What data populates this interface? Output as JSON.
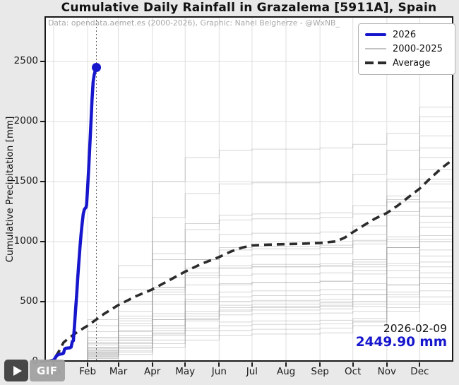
{
  "title": "Cumulative Daily Rainfall in Grazalema [5911A], Spain",
  "credit": "Data: opendata.aemet.es (2000-2026), Graphic: Nahel Belgherze - @WxNB_",
  "legend": {
    "items": [
      {
        "label": "2026",
        "style": "current"
      },
      {
        "label": "2000-2025",
        "style": "history"
      },
      {
        "label": "Average",
        "style": "average"
      }
    ]
  },
  "annotation": {
    "date": "2026-02-09",
    "value": "2449.90 mm"
  },
  "gif_badge": {
    "label": "GIF",
    "icon": "play-icon"
  },
  "colors": {
    "accent_blue": "#1616cd",
    "average_line": "#2b2b2b",
    "history_gray": "#999999",
    "grid": "#dedede",
    "figure_bg": "#e9e9e9",
    "plot_bg": "#ffffff",
    "spine": "#1a1a1a",
    "credit_gray": "#a8a8a8",
    "vline": "#444444"
  },
  "chart_data": {
    "type": "line",
    "title": "Cumulative Daily Rainfall in Grazalema [5911A], Spain",
    "xlabel": "",
    "ylabel": "Cumulative Precipitation [mm]",
    "ylim": [
      0,
      2880
    ],
    "grid": true,
    "legend_position": "upper right",
    "x_tick_labels": [
      "Jan",
      "Feb",
      "Mar",
      "Apr",
      "May",
      "Jun",
      "Jul",
      "Aug",
      "Sep",
      "Oct",
      "Nov",
      "Dec"
    ],
    "month_start_days": [
      0,
      31,
      59,
      90,
      120,
      151,
      181,
      212,
      243,
      273,
      304,
      334
    ],
    "y_ticks": [
      0,
      500,
      1000,
      1500,
      2000,
      2500
    ],
    "y_tick_labels": [
      "0",
      "500",
      "1000",
      "1500",
      "2000",
      "2500"
    ],
    "marker": {
      "day": 39,
      "value": 2449.9,
      "label_date": "2026-02-09",
      "label_value": "2449.90 mm"
    },
    "vline_day": 39,
    "current_year": {
      "name": "2026",
      "points": [
        [
          -8,
          0
        ],
        [
          -3,
          4
        ],
        [
          0,
          14
        ],
        [
          1,
          25
        ],
        [
          2,
          40
        ],
        [
          3,
          52
        ],
        [
          5,
          62
        ],
        [
          8,
          66
        ],
        [
          9,
          72
        ],
        [
          10,
          105
        ],
        [
          11,
          112
        ],
        [
          15,
          116
        ],
        [
          16,
          122
        ],
        [
          17,
          168
        ],
        [
          18,
          175
        ],
        [
          19,
          300
        ],
        [
          20,
          430
        ],
        [
          21,
          560
        ],
        [
          22,
          700
        ],
        [
          23,
          830
        ],
        [
          24,
          950
        ],
        [
          25,
          1060
        ],
        [
          26,
          1155
        ],
        [
          27,
          1230
        ],
        [
          28,
          1268
        ],
        [
          29.5,
          1285
        ],
        [
          30,
          1305
        ],
        [
          31,
          1450
        ],
        [
          32,
          1620
        ],
        [
          33,
          1800
        ],
        [
          34,
          1990
        ],
        [
          35,
          2180
        ],
        [
          36,
          2330
        ],
        [
          37,
          2390
        ],
        [
          38,
          2425
        ],
        [
          39,
          2449.9
        ]
      ]
    },
    "average": {
      "name": "Average",
      "points": [
        [
          -8,
          0
        ],
        [
          0,
          15
        ],
        [
          5,
          90
        ],
        [
          9,
          160
        ],
        [
          15,
          205
        ],
        [
          23,
          255
        ],
        [
          31,
          300
        ],
        [
          39,
          352
        ],
        [
          46,
          398
        ],
        [
          59,
          472
        ],
        [
          75,
          545
        ],
        [
          90,
          602
        ],
        [
          105,
          676
        ],
        [
          120,
          750
        ],
        [
          135,
          815
        ],
        [
          151,
          872
        ],
        [
          162,
          918
        ],
        [
          172,
          950
        ],
        [
          181,
          968
        ],
        [
          196,
          975
        ],
        [
          212,
          979
        ],
        [
          228,
          983
        ],
        [
          243,
          989
        ],
        [
          258,
          1002
        ],
        [
          266,
          1035
        ],
        [
          273,
          1078
        ],
        [
          283,
          1135
        ],
        [
          293,
          1190
        ],
        [
          304,
          1238
        ],
        [
          314,
          1300
        ],
        [
          324,
          1372
        ],
        [
          334,
          1442
        ],
        [
          344,
          1530
        ],
        [
          354,
          1612
        ],
        [
          364,
          1682
        ]
      ]
    },
    "historical": {
      "name": "2000-2025",
      "milestone_days": [
        0,
        31,
        59,
        90,
        120,
        151,
        181,
        212,
        243,
        273,
        304,
        334,
        364
      ],
      "series": [
        {
          "name": "2000",
          "values": [
            0,
            90,
            180,
            300,
            400,
            450,
            460,
            460,
            470,
            500,
            640,
            790,
            870
          ]
        },
        {
          "name": "2001",
          "values": [
            0,
            30,
            80,
            150,
            220,
            260,
            270,
            270,
            280,
            340,
            480,
            590,
            640
          ]
        },
        {
          "name": "2002",
          "values": [
            0,
            60,
            130,
            240,
            380,
            470,
            480,
            480,
            490,
            560,
            800,
            1050,
            1140
          ]
        },
        {
          "name": "2003",
          "values": [
            0,
            70,
            160,
            280,
            420,
            500,
            510,
            510,
            520,
            560,
            700,
            880,
            960
          ]
        },
        {
          "name": "2004",
          "values": [
            0,
            40,
            90,
            180,
            260,
            300,
            310,
            310,
            315,
            330,
            420,
            480,
            520
          ]
        },
        {
          "name": "2005",
          "values": [
            0,
            80,
            200,
            300,
            360,
            390,
            400,
            400,
            405,
            420,
            540,
            650,
            700
          ]
        },
        {
          "name": "2006",
          "values": [
            0,
            120,
            300,
            480,
            640,
            720,
            730,
            730,
            740,
            790,
            950,
            1160,
            1250
          ]
        },
        {
          "name": "2007",
          "values": [
            0,
            25,
            60,
            120,
            180,
            220,
            230,
            230,
            240,
            300,
            560,
            740,
            820
          ]
        },
        {
          "name": "2008",
          "values": [
            0,
            110,
            260,
            380,
            480,
            540,
            550,
            550,
            560,
            600,
            760,
            930,
            1000
          ]
        },
        {
          "name": "2009",
          "values": [
            0,
            200,
            500,
            1500,
            1700,
            1760,
            1770,
            1770,
            1780,
            1810,
            1900,
            2040,
            2080
          ]
        },
        {
          "name": "2010",
          "values": [
            0,
            350,
            800,
            1200,
            1400,
            1480,
            1490,
            1490,
            1500,
            1560,
            1760,
            2120,
            2180
          ]
        },
        {
          "name": "2011",
          "values": [
            0,
            80,
            200,
            350,
            500,
            580,
            590,
            590,
            600,
            650,
            820,
            1020,
            1090
          ]
        },
        {
          "name": "2012",
          "values": [
            0,
            60,
            150,
            230,
            280,
            330,
            340,
            340,
            345,
            360,
            450,
            540,
            580
          ]
        },
        {
          "name": "2013",
          "values": [
            0,
            100,
            250,
            900,
            1100,
            1180,
            1190,
            1190,
            1200,
            1230,
            1330,
            1480,
            1530
          ]
        },
        {
          "name": "2014",
          "values": [
            0,
            45,
            110,
            220,
            340,
            430,
            450,
            450,
            460,
            480,
            640,
            830,
            920
          ]
        },
        {
          "name": "2015",
          "values": [
            0,
            50,
            120,
            260,
            350,
            420,
            430,
            430,
            440,
            460,
            580,
            700,
            760
          ]
        },
        {
          "name": "2016",
          "values": [
            0,
            160,
            360,
            560,
            700,
            780,
            790,
            790,
            800,
            850,
            1040,
            1280,
            1380
          ]
        },
        {
          "name": "2017",
          "values": [
            0,
            180,
            420,
            620,
            740,
            800,
            810,
            810,
            815,
            830,
            950,
            1120,
            1190
          ]
        },
        {
          "name": "2018",
          "values": [
            0,
            250,
            600,
            850,
            1000,
            1060,
            1070,
            1070,
            1080,
            1130,
            1350,
            1700,
            1800
          ]
        },
        {
          "name": "2019",
          "values": [
            0,
            150,
            380,
            600,
            720,
            780,
            790,
            790,
            795,
            810,
            900,
            1000,
            1040
          ]
        },
        {
          "name": "2020",
          "values": [
            0,
            200,
            480,
            700,
            850,
            930,
            940,
            940,
            950,
            1010,
            1220,
            1520,
            1620
          ]
        },
        {
          "name": "2021",
          "values": [
            0,
            120,
            320,
            620,
            850,
            950,
            960,
            960,
            970,
            1060,
            1380,
            1780,
            1890
          ]
        },
        {
          "name": "2022",
          "values": [
            0,
            90,
            220,
            400,
            560,
            650,
            660,
            660,
            670,
            730,
            950,
            1210,
            1310
          ]
        },
        {
          "name": "2023",
          "values": [
            0,
            300,
            700,
            1000,
            1150,
            1220,
            1230,
            1230,
            1240,
            1300,
            1520,
            1880,
            1980
          ]
        },
        {
          "name": "2024",
          "values": [
            0,
            140,
            340,
            580,
            780,
            880,
            890,
            890,
            900,
            980,
            1250,
            1600,
            1710
          ]
        },
        {
          "name": "2025",
          "values": [
            0,
            70,
            180,
            350,
            520,
            640,
            660,
            660,
            670,
            760,
            1020,
            1330,
            1450
          ]
        }
      ]
    }
  }
}
